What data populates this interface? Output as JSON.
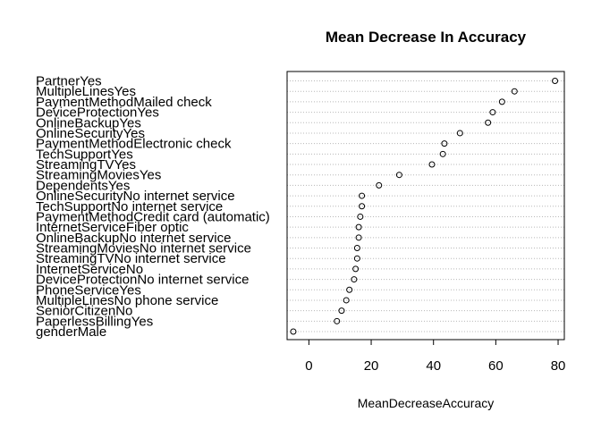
{
  "chart_data": {
    "type": "scatter",
    "title": "Mean Decrease In Accuracy",
    "xlabel": "MeanDecreaseAccuracy",
    "ylabel": "",
    "xlim": [
      -7,
      82
    ],
    "xticks": [
      0,
      20,
      40,
      60,
      80
    ],
    "grid": true,
    "categories": [
      "PartnerYes",
      "MultipleLinesYes",
      "PaymentMethodMailed check",
      "DeviceProtectionYes",
      "OnlineBackupYes",
      "OnlineSecurityYes",
      "PaymentMethodElectronic check",
      "TechSupportYes",
      "StreamingTVYes",
      "StreamingMoviesYes",
      "DependentsYes",
      "OnlineSecurityNo internet service",
      "TechSupportNo internet service",
      "PaymentMethodCredit card (automatic)",
      "InternetServiceFiber optic",
      "OnlineBackupNo internet service",
      "StreamingMoviesNo internet service",
      "StreamingTVNo internet service",
      "InternetServiceNo",
      "DeviceProtectionNo internet service",
      "PhoneServiceYes",
      "MultipleLinesNo phone service",
      "SeniorCitizenNo",
      "PaperlessBillingYes",
      "genderMale"
    ],
    "values": [
      79,
      66,
      62,
      59,
      57.5,
      48.5,
      43.5,
      43,
      39.5,
      29,
      22.5,
      17,
      17,
      16.5,
      16,
      16,
      15.5,
      15.5,
      15,
      14.5,
      13,
      12,
      10.5,
      9,
      -5
    ]
  }
}
